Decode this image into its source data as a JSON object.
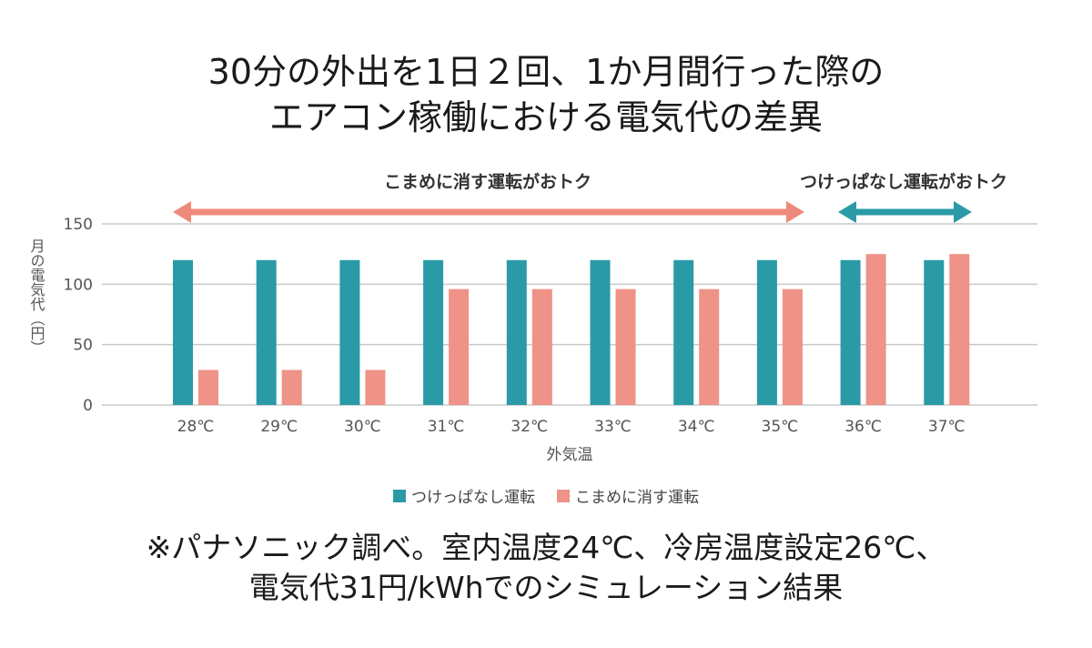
{
  "title_lines": [
    "30分の外出を1日２回、1か月間行った際の",
    "エアコン稼働における電気代の差異"
  ],
  "note_lines": [
    "※パナソニック調べ。室内温度24℃、冷房温度設定26℃、",
    "電気代31円/kWhでのシミュレーション結果"
  ],
  "annotations": {
    "left_range_label": "こまめに消す運転がおトク",
    "right_range_label": "つけっぱなし運転がおトク",
    "arrow_color_left": "#ee8a7b",
    "arrow_color_right": "#2a9aa6"
  },
  "chart_data": {
    "type": "bar",
    "categories": [
      "28℃",
      "29℃",
      "30℃",
      "31℃",
      "32℃",
      "33℃",
      "34℃",
      "35℃",
      "36℃",
      "37℃"
    ],
    "series": [
      {
        "name": "つけっぱなし運転",
        "color": "#2a9aa6",
        "values": [
          120,
          120,
          120,
          120,
          120,
          120,
          120,
          120,
          120,
          120
        ]
      },
      {
        "name": "こまめに消す運転",
        "color": "#ef9287",
        "values": [
          29,
          29,
          29,
          96,
          96,
          96,
          96,
          96,
          125,
          125
        ]
      }
    ],
    "xlabel": "外気温",
    "ylabel": "月の電気代（円）",
    "ylim": [
      0,
      150
    ],
    "yticks": [
      0,
      50,
      100,
      150
    ],
    "grid": true,
    "legend_position": "bottom-center"
  }
}
